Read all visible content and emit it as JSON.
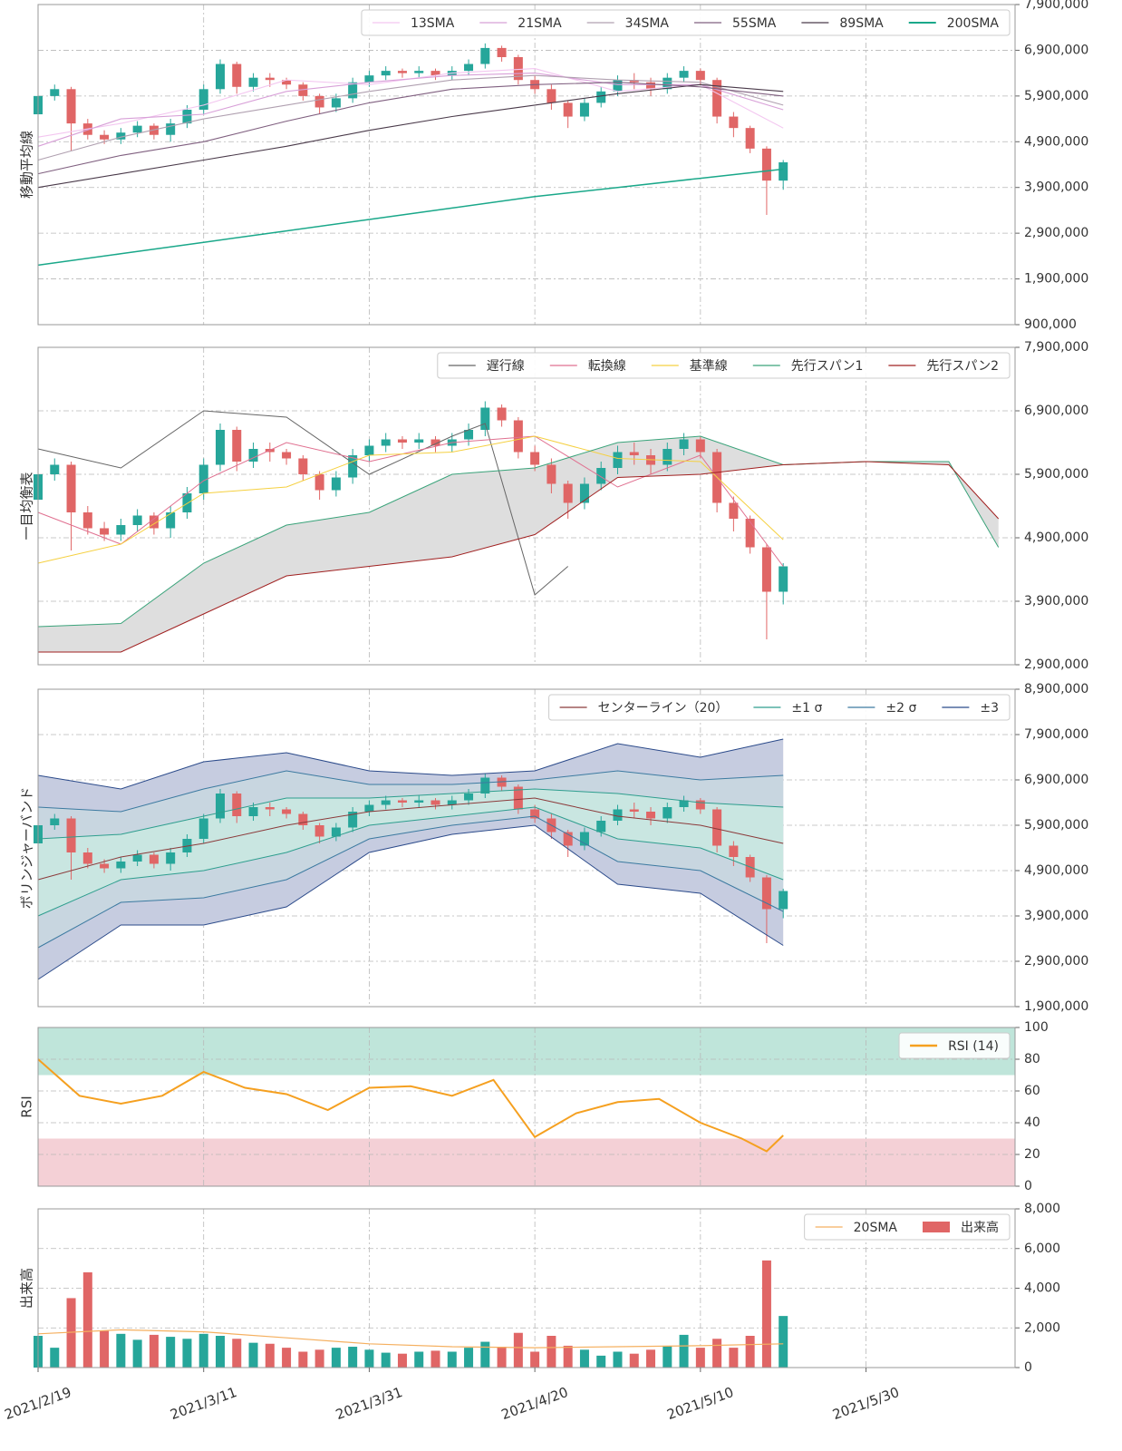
{
  "chart_data": [
    {
      "type": "candlestick",
      "ylabel": "移動平均線",
      "ylim": [
        900000,
        7900000
      ],
      "yticks": [
        {
          "value": 900000,
          "label": "900,000"
        },
        {
          "value": 1900000,
          "label": "1,900,000"
        },
        {
          "value": 2900000,
          "label": "2,900,000"
        },
        {
          "value": 3900000,
          "label": "3,900,000"
        },
        {
          "value": 4900000,
          "label": "4,900,000"
        },
        {
          "value": 5900000,
          "label": "5,900,000"
        },
        {
          "value": 6900000,
          "label": "6,900,000"
        },
        {
          "value": 7900000,
          "label": "7,900,000"
        }
      ],
      "grid": true,
      "legend": "upper right",
      "up_color": "#26a69a",
      "down_color": "#e06666",
      "x": [
        "2021/2/19",
        "2021/2/21",
        "2021/2/23",
        "2021/2/25",
        "2021/2/27",
        "2021/3/1",
        "2021/3/3",
        "2021/3/5",
        "2021/3/7",
        "2021/3/9",
        "2021/3/11",
        "2021/3/13",
        "2021/3/15",
        "2021/3/17",
        "2021/3/19",
        "2021/3/21",
        "2021/3/23",
        "2021/3/25",
        "2021/3/27",
        "2021/3/29",
        "2021/3/31",
        "2021/4/2",
        "2021/4/4",
        "2021/4/6",
        "2021/4/8",
        "2021/4/10",
        "2021/4/12",
        "2021/4/14",
        "2021/4/16",
        "2021/4/18",
        "2021/4/20",
        "2021/4/22",
        "2021/4/24",
        "2021/4/26",
        "2021/4/28",
        "2021/4/30",
        "2021/5/2",
        "2021/5/4",
        "2021/5/6",
        "2021/5/8",
        "2021/5/10",
        "2021/5/12",
        "2021/5/14",
        "2021/5/16",
        "2021/5/18",
        "2021/5/20"
      ],
      "open": [
        5500000,
        5900000,
        6050000,
        5300000,
        5050000,
        4950000,
        5100000,
        5250000,
        5050000,
        5300000,
        5600000,
        6050000,
        6600000,
        6100000,
        6300000,
        6250000,
        6150000,
        5900000,
        5650000,
        5850000,
        6200000,
        6350000,
        6450000,
        6400000,
        6450000,
        6350000,
        6450000,
        6600000,
        6950000,
        6750000,
        6250000,
        6050000,
        5750000,
        5450000,
        5750000,
        6000000,
        6250000,
        6200000,
        6050000,
        6300000,
        6450000,
        6250000,
        5450000,
        5200000,
        4750000,
        4050000
      ],
      "high": [
        6000000,
        6150000,
        6100000,
        5400000,
        5150000,
        5200000,
        5350000,
        5300000,
        5400000,
        5700000,
        6150000,
        6700000,
        6650000,
        6400000,
        6400000,
        6300000,
        6200000,
        5950000,
        5950000,
        6300000,
        6450000,
        6550000,
        6500000,
        6550000,
        6500000,
        6550000,
        6700000,
        7050000,
        7000000,
        6800000,
        6350000,
        6150000,
        5800000,
        5850000,
        6100000,
        6350000,
        6400000,
        6300000,
        6400000,
        6550000,
        6500000,
        6300000,
        5550000,
        5250000,
        4800000,
        4500000
      ],
      "low": [
        5400000,
        5800000,
        4700000,
        4950000,
        4850000,
        4850000,
        5000000,
        4950000,
        4900000,
        5200000,
        5500000,
        5950000,
        5950000,
        6000000,
        6100000,
        6050000,
        5800000,
        5500000,
        5550000,
        5750000,
        6100000,
        6250000,
        6300000,
        6300000,
        6250000,
        6250000,
        6350000,
        6500000,
        6650000,
        6150000,
        5950000,
        5600000,
        5200000,
        5350000,
        5650000,
        5900000,
        6050000,
        5900000,
        5950000,
        6200000,
        6150000,
        5300000,
        5000000,
        4650000,
        3300000,
        3850000
      ],
      "close": [
        5900000,
        6050000,
        5300000,
        5050000,
        4950000,
        5100000,
        5250000,
        5050000,
        5300000,
        5600000,
        6050000,
        6600000,
        6100000,
        6300000,
        6250000,
        6150000,
        5900000,
        5650000,
        5850000,
        6200000,
        6350000,
        6450000,
        6400000,
        6450000,
        6350000,
        6450000,
        6600000,
        6950000,
        6750000,
        6250000,
        6050000,
        5750000,
        5450000,
        5750000,
        6000000,
        6250000,
        6200000,
        6050000,
        6300000,
        6450000,
        6250000,
        5450000,
        5200000,
        4750000,
        4050000,
        4450000
      ],
      "series": [
        {
          "name": "13SMA",
          "color": "#f3c6f0",
          "x": [
            "2021/2/19",
            "2021/3/1",
            "2021/3/11",
            "2021/3/21",
            "2021/3/31",
            "2021/4/10",
            "2021/4/20",
            "2021/4/30",
            "2021/5/10",
            "2021/5/20"
          ],
          "values": [
            5000000,
            5300000,
            5700000,
            6250000,
            6150000,
            6400000,
            6500000,
            6000000,
            6150000,
            5200000
          ]
        },
        {
          "name": "21SMA",
          "color": "#d8a0d8",
          "x": [
            "2021/2/19",
            "2021/3/1",
            "2021/3/11",
            "2021/3/21",
            "2021/3/31",
            "2021/4/10",
            "2021/4/20",
            "2021/4/30",
            "2021/5/10",
            "2021/5/20"
          ],
          "values": [
            4800000,
            5400000,
            5500000,
            6000000,
            6200000,
            6350000,
            6400000,
            6150000,
            6150000,
            5600000
          ]
        },
        {
          "name": "34SMA",
          "color": "#b0a0b0",
          "x": [
            "2021/2/19",
            "2021/3/1",
            "2021/3/11",
            "2021/3/21",
            "2021/3/31",
            "2021/4/10",
            "2021/4/20",
            "2021/4/30",
            "2021/5/10",
            "2021/5/20"
          ],
          "values": [
            4500000,
            5000000,
            5400000,
            5700000,
            6000000,
            6250000,
            6350000,
            6250000,
            6200000,
            5700000
          ]
        },
        {
          "name": "55SMA",
          "color": "#806080",
          "x": [
            "2021/2/19",
            "2021/3/1",
            "2021/3/11",
            "2021/3/21",
            "2021/3/31",
            "2021/4/10",
            "2021/4/20",
            "2021/4/30",
            "2021/5/10",
            "2021/5/20"
          ],
          "values": [
            4200000,
            4600000,
            4900000,
            5350000,
            5750000,
            6050000,
            6150000,
            6200000,
            6100000,
            5900000
          ]
        },
        {
          "name": "89SMA",
          "color": "#4a3a4a",
          "x": [
            "2021/2/19",
            "2021/3/1",
            "2021/3/11",
            "2021/3/21",
            "2021/3/31",
            "2021/4/10",
            "2021/4/20",
            "2021/4/30",
            "2021/5/10",
            "2021/5/20"
          ],
          "values": [
            3900000,
            4200000,
            4500000,
            4800000,
            5150000,
            5450000,
            5700000,
            5950000,
            6150000,
            6000000
          ]
        },
        {
          "name": "200SMA",
          "color": "#1aa88a",
          "x": [
            "2021/2/19",
            "2021/3/1",
            "2021/3/11",
            "2021/3/21",
            "2021/3/31",
            "2021/4/10",
            "2021/4/20",
            "2021/4/30",
            "2021/5/10",
            "2021/5/20"
          ],
          "values": [
            2200000,
            2450000,
            2700000,
            2950000,
            3200000,
            3450000,
            3700000,
            3900000,
            4100000,
            4300000
          ]
        }
      ]
    },
    {
      "type": "ichimoku",
      "ylabel": "一目均衡表",
      "ylim": [
        2900000,
        7900000
      ],
      "yticks": [
        {
          "value": 2900000,
          "label": "2,900,000"
        },
        {
          "value": 3900000,
          "label": "3,900,000"
        },
        {
          "value": 4900000,
          "label": "4,900,000"
        },
        {
          "value": 5900000,
          "label": "5,900,000"
        },
        {
          "value": 6900000,
          "label": "6,900,000"
        },
        {
          "value": 7900000,
          "label": "7,900,000"
        }
      ],
      "grid": true,
      "legend": "upper right",
      "cloud_color": "#dedede",
      "series": [
        {
          "name": "遅行線",
          "color": "#666666",
          "x": [
            "2021/2/19",
            "2021/3/1",
            "2021/3/11",
            "2021/3/21",
            "2021/3/31",
            "2021/4/10",
            "2021/4/14",
            "2021/4/20",
            "2021/4/24"
          ],
          "values": [
            6300000,
            6000000,
            6900000,
            6800000,
            5900000,
            6500000,
            6700000,
            4000000,
            4450000
          ]
        },
        {
          "name": "転換線",
          "color": "#e07090",
          "x": [
            "2021/2/19",
            "2021/3/1",
            "2021/3/11",
            "2021/3/21",
            "2021/3/31",
            "2021/4/10",
            "2021/4/20",
            "2021/4/30",
            "2021/5/10",
            "2021/5/20"
          ],
          "values": [
            5300000,
            4800000,
            5800000,
            6400000,
            6100000,
            6400000,
            6500000,
            5700000,
            6200000,
            4450000
          ]
        },
        {
          "name": "基準線",
          "color": "#f5d040",
          "x": [
            "2021/2/19",
            "2021/3/1",
            "2021/3/11",
            "2021/3/21",
            "2021/3/31",
            "2021/4/10",
            "2021/4/20",
            "2021/4/30",
            "2021/5/10",
            "2021/5/20"
          ],
          "values": [
            4500000,
            4800000,
            5600000,
            5700000,
            6200000,
            6250000,
            6500000,
            6150000,
            6100000,
            4870000
          ]
        },
        {
          "name": "先行スパン1",
          "color": "#3aa37a",
          "x": [
            "2021/2/19",
            "2021/3/1",
            "2021/3/11",
            "2021/3/21",
            "2021/3/31",
            "2021/4/10",
            "2021/4/20",
            "2021/4/30",
            "2021/5/10",
            "2021/5/20",
            "2021/5/30",
            "2021/6/9",
            "2021/6/15"
          ],
          "values": [
            3500000,
            3550000,
            4500000,
            5100000,
            5300000,
            5900000,
            6000000,
            6400000,
            6500000,
            6050000,
            6100000,
            6100000,
            4750000
          ]
        },
        {
          "name": "先行スパン2",
          "color": "#a02020",
          "x": [
            "2021/2/19",
            "2021/3/1",
            "2021/3/11",
            "2021/3/21",
            "2021/3/31",
            "2021/4/10",
            "2021/4/20",
            "2021/4/30",
            "2021/5/10",
            "2021/5/20",
            "2021/5/30",
            "2021/6/9",
            "2021/6/15"
          ],
          "values": [
            3100000,
            3100000,
            3700000,
            4300000,
            4450000,
            4600000,
            4950000,
            5850000,
            5900000,
            6050000,
            6100000,
            6050000,
            5200000
          ]
        }
      ]
    },
    {
      "type": "bollinger",
      "ylabel": "ボリンジャーバンド",
      "ylim": [
        1900000,
        8900000
      ],
      "yticks": [
        {
          "value": 1900000,
          "label": "1,900,000"
        },
        {
          "value": 2900000,
          "label": "2,900,000"
        },
        {
          "value": 3900000,
          "label": "3,900,000"
        },
        {
          "value": 4900000,
          "label": "4,900,000"
        },
        {
          "value": 5900000,
          "label": "5,900,000"
        },
        {
          "value": 6900000,
          "label": "6,900,000"
        },
        {
          "value": 7900000,
          "label": "7,900,000"
        },
        {
          "value": 8900000,
          "label": "8,900,000"
        }
      ],
      "grid": true,
      "legend": "upper right",
      "x": [
        "2021/2/19",
        "2021/3/1",
        "2021/3/11",
        "2021/3/21",
        "2021/3/31",
        "2021/4/10",
        "2021/4/20",
        "2021/4/30",
        "2021/5/10",
        "2021/5/20"
      ],
      "series": [
        {
          "name": "センターライン（20）",
          "color": "#8b3a3a",
          "values": [
            4700000,
            5200000,
            5500000,
            5900000,
            6200000,
            6350000,
            6500000,
            6100000,
            5900000,
            5500000
          ]
        },
        {
          "name": "±1 σ",
          "color": "#2e9e8e",
          "fill": "#c9e6e1",
          "upper": [
            5600000,
            5700000,
            6100000,
            6500000,
            6500000,
            6600000,
            6700000,
            6600000,
            6400000,
            6300000
          ],
          "lower": [
            3900000,
            4700000,
            4900000,
            5300000,
            5900000,
            6100000,
            6300000,
            5600000,
            5400000,
            4700000
          ]
        },
        {
          "name": "±2 σ",
          "color": "#3c7aa0",
          "fill": "#c8d6e0",
          "upper": [
            6300000,
            6200000,
            6700000,
            7100000,
            6800000,
            6800000,
            6900000,
            7100000,
            6900000,
            7000000
          ],
          "lower": [
            3200000,
            4200000,
            4300000,
            4700000,
            5600000,
            5900000,
            6100000,
            5100000,
            4900000,
            4000000
          ]
        },
        {
          "name": "±3",
          "color": "#2b4a8a",
          "fill": "#c6cce0",
          "upper": [
            7000000,
            6700000,
            7300000,
            7500000,
            7100000,
            7000000,
            7100000,
            7700000,
            7400000,
            7800000
          ],
          "lower": [
            2500000,
            3700000,
            3700000,
            4100000,
            5300000,
            5700000,
            5900000,
            4600000,
            4400000,
            3250000
          ]
        }
      ]
    },
    {
      "type": "rsi",
      "ylabel": "RSI",
      "ylim": [
        0,
        100
      ],
      "yticks": [
        0,
        20,
        40,
        60,
        80,
        100
      ],
      "grid": true,
      "legend": "upper right",
      "zones": [
        {
          "from": 70,
          "to": 100,
          "color": "#bfe5da"
        },
        {
          "from": 0,
          "to": 30,
          "color": "#f4d0d6"
        }
      ],
      "series": [
        {
          "name": "RSI (14)",
          "color": "#f5a020",
          "x": [
            "2021/2/19",
            "2021/2/24",
            "2021/3/1",
            "2021/3/6",
            "2021/3/11",
            "2021/3/16",
            "2021/3/21",
            "2021/3/26",
            "2021/3/31",
            "2021/4/5",
            "2021/4/10",
            "2021/4/15",
            "2021/4/20",
            "2021/4/25",
            "2021/4/30",
            "2021/5/5",
            "2021/5/10",
            "2021/5/15",
            "2021/5/18",
            "2021/5/20"
          ],
          "values": [
            80,
            57,
            52,
            57,
            72,
            62,
            58,
            48,
            62,
            63,
            57,
            67,
            31,
            46,
            53,
            55,
            40,
            30,
            22,
            32
          ]
        }
      ]
    },
    {
      "type": "volume",
      "ylabel": "出来高",
      "ylim": [
        0,
        8000
      ],
      "yticks": [
        0,
        {
          "value": 2000,
          "label": "2,000"
        },
        {
          "value": 4000,
          "label": "4,000"
        },
        {
          "value": 6000,
          "label": "6,000"
        },
        {
          "value": 8000,
          "label": "8,000"
        }
      ],
      "grid": true,
      "legend": "upper right",
      "xlim": [
        "2021/2/19",
        "2021/6/17"
      ],
      "xticks": [
        "2021/2/19",
        "2021/3/11",
        "2021/3/31",
        "2021/4/20",
        "2021/5/10",
        "2021/5/30"
      ],
      "series": [
        {
          "name": "20SMA",
          "color": "#f5b060",
          "x": [
            "2021/2/19",
            "2021/3/1",
            "2021/3/11",
            "2021/3/21",
            "2021/3/31",
            "2021/4/10",
            "2021/4/20",
            "2021/4/30",
            "2021/5/10",
            "2021/5/20"
          ],
          "values": [
            1700,
            1900,
            1800,
            1500,
            1200,
            1050,
            1000,
            1050,
            1100,
            1200
          ]
        },
        {
          "name": "出来高",
          "color": "#e06666",
          "values": [
            1600,
            1000,
            3500,
            4800,
            1850,
            1700,
            1400,
            1650,
            1550,
            1450,
            1700,
            1600,
            1450,
            1250,
            1200,
            1000,
            800,
            900,
            1000,
            1050,
            900,
            750,
            700,
            800,
            850,
            800,
            1000,
            1300,
            1050,
            1750,
            800,
            1600,
            1100,
            900,
            600,
            800,
            700,
            900,
            1100,
            1650,
            1000,
            1450,
            1000,
            1600,
            5400,
            2600
          ]
        }
      ]
    }
  ]
}
